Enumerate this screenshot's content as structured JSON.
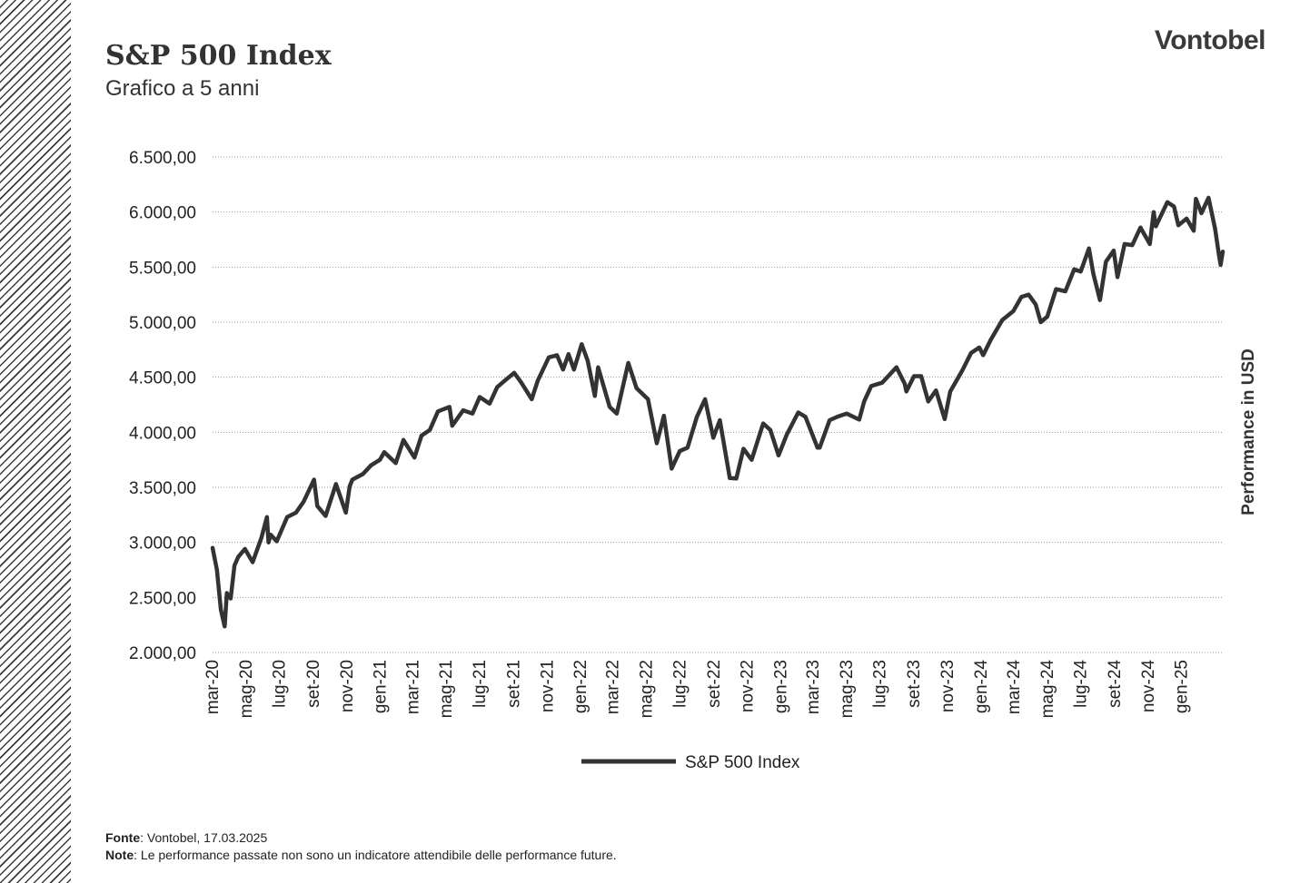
{
  "header": {
    "title": "S&P 500 Index",
    "subtitle": "Grafico a 5 anni",
    "logo": "Vontobel"
  },
  "footer": {
    "source_label": "Fonte",
    "source_text": ": Vontobel, 17.03.2025",
    "note_label": "Note",
    "note_text": ": Le performance passate non sono un indicatore attendibile delle performance future."
  },
  "colors": {
    "series": "#333333",
    "grid": "#9a9a9a",
    "stripes": "#3a3a3a"
  },
  "chart_data": {
    "type": "line",
    "title": "S&P 500 Index",
    "subtitle": "Grafico a 5 anni",
    "xlabel": "",
    "ylabel": "Performance in USD",
    "ylim": [
      2000,
      6500
    ],
    "yticks": [
      "6.500,00",
      "6.000,00",
      "5.500,00",
      "5.000,00",
      "4.500,00",
      "4.000,00",
      "3.500,00",
      "3.000,00",
      "2.500,00",
      "2.000,00"
    ],
    "ytick_values": [
      6500,
      6000,
      5500,
      5000,
      4500,
      4000,
      3500,
      3000,
      2500,
      2000
    ],
    "xticks": [
      "mar-20",
      "mag-20",
      "lug-20",
      "set-20",
      "nov-20",
      "gen-21",
      "mar-21",
      "mag-21",
      "lug-21",
      "set-21",
      "nov-21",
      "gen-22",
      "mar-22",
      "mag-22",
      "lug-22",
      "set-22",
      "nov-22",
      "gen-23",
      "mar-23",
      "mag-23",
      "lug-23",
      "set-23",
      "nov-23",
      "gen-24",
      "mar-24",
      "mag-24",
      "lug-24",
      "set-24",
      "nov-24",
      "gen-25"
    ],
    "xtick_dates": [
      "2020-03-01",
      "2020-05-01",
      "2020-07-01",
      "2020-09-01",
      "2020-11-01",
      "2021-01-01",
      "2021-03-01",
      "2021-05-01",
      "2021-07-01",
      "2021-09-01",
      "2021-11-01",
      "2022-01-01",
      "2022-03-01",
      "2022-05-01",
      "2022-07-01",
      "2022-09-01",
      "2022-11-01",
      "2023-01-01",
      "2023-03-01",
      "2023-05-01",
      "2023-07-01",
      "2023-09-01",
      "2023-11-01",
      "2024-01-01",
      "2024-03-01",
      "2024-05-01",
      "2024-07-01",
      "2024-09-01",
      "2024-11-01",
      "2025-01-01"
    ],
    "xlim": [
      "2020-03-01",
      "2025-03-17"
    ],
    "grid": true,
    "legend": "bottom-center",
    "series": [
      {
        "name": "S&P 500 Index",
        "x": [
          "2020-03-01",
          "2020-03-09",
          "2020-03-16",
          "2020-03-23",
          "2020-03-27",
          "2020-04-03",
          "2020-04-10",
          "2020-04-17",
          "2020-04-29",
          "2020-05-13",
          "2020-05-29",
          "2020-06-08",
          "2020-06-11",
          "2020-06-15",
          "2020-06-26",
          "2020-07-15",
          "2020-07-31",
          "2020-08-14",
          "2020-09-02",
          "2020-09-08",
          "2020-09-23",
          "2020-10-12",
          "2020-10-30",
          "2020-11-06",
          "2020-11-11",
          "2020-11-30",
          "2020-12-15",
          "2020-12-31",
          "2021-01-08",
          "2021-01-29",
          "2021-02-12",
          "2021-03-04",
          "2021-03-17",
          "2021-04-01",
          "2021-04-16",
          "2021-05-07",
          "2021-05-12",
          "2021-06-01",
          "2021-06-18",
          "2021-07-01",
          "2021-07-19",
          "2021-08-02",
          "2021-08-16",
          "2021-09-02",
          "2021-09-15",
          "2021-10-04",
          "2021-10-15",
          "2021-11-04",
          "2021-11-19",
          "2021-11-30",
          "2021-12-10",
          "2021-12-20",
          "2022-01-03",
          "2022-01-14",
          "2022-01-27",
          "2022-02-02",
          "2022-02-23",
          "2022-03-08",
          "2022-03-29",
          "2022-04-13",
          "2022-05-04",
          "2022-05-20",
          "2022-06-02",
          "2022-06-16",
          "2022-07-01",
          "2022-07-15",
          "2022-08-01",
          "2022-08-16",
          "2022-08-31",
          "2022-09-12",
          "2022-09-30",
          "2022-10-12",
          "2022-10-25",
          "2022-11-09",
          "2022-11-30",
          "2022-12-13",
          "2022-12-28",
          "2023-01-12",
          "2023-02-02",
          "2023-02-15",
          "2023-03-09",
          "2023-03-13",
          "2023-03-31",
          "2023-04-14",
          "2023-05-01",
          "2023-05-24",
          "2023-06-02",
          "2023-06-15",
          "2023-07-05",
          "2023-07-31",
          "2023-08-15",
          "2023-08-18",
          "2023-09-01",
          "2023-09-14",
          "2023-09-27",
          "2023-10-11",
          "2023-10-27",
          "2023-11-06",
          "2023-11-28",
          "2023-12-14",
          "2023-12-29",
          "2024-01-05",
          "2024-01-19",
          "2024-02-09",
          "2024-02-29",
          "2024-03-15",
          "2024-03-28",
          "2024-04-10",
          "2024-04-19",
          "2024-05-01",
          "2024-05-17",
          "2024-06-03",
          "2024-06-19",
          "2024-07-01",
          "2024-07-16",
          "2024-07-24",
          "2024-08-05",
          "2024-08-16",
          "2024-08-30",
          "2024-09-06",
          "2024-09-19",
          "2024-10-03",
          "2024-10-18",
          "2024-11-04",
          "2024-11-11",
          "2024-11-15",
          "2024-12-06",
          "2024-12-18",
          "2024-12-26",
          "2025-01-10",
          "2025-01-23",
          "2025-01-27",
          "2025-02-06",
          "2025-02-19",
          "2025-03-03",
          "2025-03-10",
          "2025-03-13",
          "2025-03-17"
        ],
        "values": [
          2950,
          2750,
          2390,
          2237,
          2540,
          2490,
          2790,
          2870,
          2940,
          2820,
          3040,
          3230,
          3000,
          3070,
          3010,
          3230,
          3270,
          3370,
          3570,
          3330,
          3240,
          3530,
          3270,
          3510,
          3570,
          3620,
          3700,
          3750,
          3820,
          3720,
          3930,
          3770,
          3970,
          4020,
          4190,
          4230,
          4060,
          4200,
          4170,
          4320,
          4260,
          4410,
          4470,
          4540,
          4450,
          4300,
          4470,
          4680,
          4700,
          4570,
          4710,
          4570,
          4800,
          4650,
          4330,
          4590,
          4230,
          4170,
          4630,
          4400,
          4300,
          3900,
          4150,
          3670,
          3830,
          3860,
          4140,
          4300,
          3950,
          4110,
          3585,
          3580,
          3850,
          3750,
          4080,
          4020,
          3790,
          3980,
          4180,
          4140,
          3860,
          3860,
          4110,
          4140,
          4170,
          4115,
          4280,
          4420,
          4450,
          4590,
          4440,
          4370,
          4510,
          4510,
          4280,
          4380,
          4120,
          4370,
          4560,
          4720,
          4770,
          4700,
          4840,
          5020,
          5100,
          5230,
          5250,
          5160,
          5000,
          5050,
          5300,
          5280,
          5480,
          5460,
          5670,
          5440,
          5200,
          5550,
          5650,
          5410,
          5710,
          5700,
          5860,
          5710,
          6000,
          5870,
          6090,
          6050,
          5880,
          5940,
          5830,
          6120,
          5990,
          6130,
          5850,
          5610,
          5520,
          5640
        ]
      }
    ]
  }
}
